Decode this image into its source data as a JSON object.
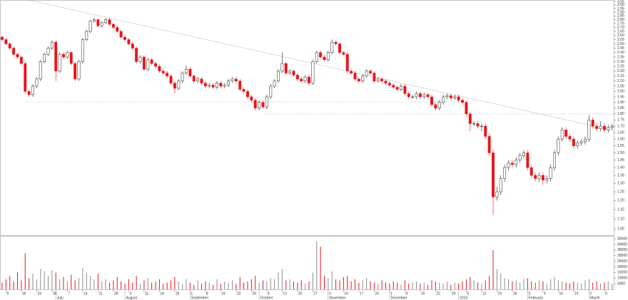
{
  "chart_data": [
    {
      "type": "candlestick",
      "log": true,
      "up_color": "#ffffff",
      "down_color": "#e8141c",
      "outline_color": "#222222",
      "ylim": [
        1.02,
        3.07
      ],
      "yticks": [
        1.05,
        {
          "value": 1.1,
          "label": "1.10"
        },
        1.15,
        {
          "value": 1.2,
          "label": "1.20"
        },
        1.25,
        {
          "value": 1.3,
          "label": "1.30"
        },
        1.35,
        {
          "value": 1.4,
          "label": "1.40"
        },
        1.45,
        {
          "value": 1.5,
          "label": "1.50"
        },
        1.55,
        {
          "value": 1.6,
          "label": "1.60"
        },
        1.65,
        {
          "value": 1.7,
          "label": "1.70"
        },
        1.75,
        {
          "value": 1.8,
          "label": "1.80"
        },
        1.85,
        {
          "value": 1.9,
          "label": "1.90"
        },
        1.95,
        {
          "value": 2,
          "label": "2.00"
        },
        2.05,
        {
          "value": 2.1,
          "label": "2.10"
        },
        2.15,
        {
          "value": 2.2,
          "label": "2.20"
        },
        2.25,
        {
          "value": 2.3,
          "label": "2.30"
        },
        2.35,
        {
          "value": 2.4,
          "label": "2.40"
        },
        2.45,
        {
          "value": 2.5,
          "label": "2.50"
        },
        2.55,
        {
          "value": 2.6,
          "label": "2.60"
        },
        2.65,
        {
          "value": 2.7,
          "label": "2.70"
        },
        2.75,
        {
          "value": 2.8,
          "label": "2.80"
        },
        2.85,
        {
          "value": 2.9,
          "label": "2.90"
        },
        2.95,
        {
          "value": 3,
          "label": "3.00"
        },
        3.05
      ],
      "xticks": [
        {
          "value": 1,
          "label": "9"
        },
        {
          "value": 5,
          "label": "16"
        },
        {
          "value": 9,
          "label": "23"
        },
        {
          "value": 13,
          "label": "30"
        },
        {
          "value": 17,
          "label": "7"
        },
        {
          "value": 21,
          "label": "14"
        },
        {
          "value": 25,
          "label": "21"
        },
        {
          "value": 29,
          "label": "28"
        },
        {
          "value": 33,
          "label": "4"
        },
        {
          "value": 37,
          "label": "11"
        },
        {
          "value": 41,
          "label": "18"
        },
        {
          "value": 45,
          "label": "25"
        },
        {
          "value": 49,
          "label": "1"
        },
        {
          "value": 53,
          "label": "8"
        },
        {
          "value": 57,
          "label": "15"
        },
        {
          "value": 61,
          "label": "22"
        },
        {
          "value": 65,
          "label": "29"
        },
        {
          "value": 69,
          "label": "6"
        },
        {
          "value": 73,
          "label": "13"
        },
        {
          "value": 77,
          "label": "20"
        },
        {
          "value": 81,
          "label": "27"
        },
        {
          "value": 85,
          "label": "3"
        },
        {
          "value": 89,
          "label": "10"
        },
        {
          "value": 93,
          "label": "17"
        },
        {
          "value": 97,
          "label": "24"
        },
        {
          "value": 101,
          "label": "1"
        },
        {
          "value": 105,
          "label": "8"
        },
        {
          "value": 109,
          "label": "15"
        },
        {
          "value": 113,
          "label": "22"
        },
        {
          "value": 117,
          "label": "29"
        },
        {
          "value": 121,
          "label": "5"
        },
        {
          "value": 125,
          "label": "12"
        },
        {
          "value": 129,
          "label": "19"
        },
        {
          "value": 133,
          "label": "26"
        },
        {
          "value": 137,
          "label": "2"
        },
        {
          "value": 141,
          "label": "9"
        },
        {
          "value": 145,
          "label": "16"
        },
        {
          "value": 149,
          "label": "23"
        },
        {
          "value": 153,
          "label": "2"
        },
        {
          "value": 157,
          "label": "9"
        }
      ],
      "month_ticks": [
        {
          "value": 14,
          "label": "July"
        },
        {
          "value": 32,
          "label": "August"
        },
        {
          "value": 49,
          "label": "September"
        },
        {
          "value": 67,
          "label": "October"
        },
        {
          "value": 85,
          "label": "November"
        },
        {
          "value": 101,
          "label": "December"
        },
        {
          "value": 119,
          "label": "2015"
        },
        {
          "value": 137,
          "label": "February"
        },
        {
          "value": 153,
          "label": "March"
        }
      ],
      "open": [
        2.58,
        2.55,
        2.5,
        2.45,
        2.38,
        2.35,
        2.28,
        2.0,
        1.97,
        2.05,
        2.12,
        2.3,
        2.38,
        2.45,
        2.52,
        2.2,
        2.38,
        2.35,
        2.4,
        2.28,
        2.12,
        2.3,
        2.55,
        2.65,
        2.78,
        2.8,
        2.72,
        2.76,
        2.8,
        2.74,
        2.7,
        2.65,
        2.58,
        2.55,
        2.5,
        2.45,
        2.3,
        2.35,
        2.22,
        2.32,
        2.28,
        2.25,
        2.2,
        2.18,
        2.15,
        2.08,
        2.03,
        2.1,
        2.18,
        2.22,
        2.15,
        2.1,
        2.12,
        2.08,
        2.05,
        2.06,
        2.04,
        2.08,
        2.05,
        2.06,
        2.1,
        2.12,
        2.1,
        2.02,
        2.0,
        1.95,
        1.92,
        1.85,
        1.9,
        1.86,
        1.95,
        2.05,
        2.1,
        2.2,
        2.28,
        2.18,
        2.2,
        2.16,
        2.12,
        2.1,
        2.14,
        2.08,
        2.3,
        2.4,
        2.35,
        2.32,
        2.4,
        2.52,
        2.5,
        2.4,
        2.38,
        2.2,
        2.18,
        2.12,
        2.1,
        2.15,
        2.2,
        2.18,
        2.1,
        2.12,
        2.1,
        2.08,
        2.06,
        2.04,
        2.02,
        2.05,
        1.98,
        1.95,
        1.95,
        1.98,
        1.95,
        1.97,
        1.95,
        1.88,
        1.85,
        1.9,
        1.95,
        1.96,
        1.94,
        1.95,
        1.92,
        1.9,
        1.8,
        1.72,
        1.72,
        1.7,
        1.7,
        1.62,
        1.5,
        1.22,
        1.25,
        1.33,
        1.4,
        1.43,
        1.42,
        1.45,
        1.48,
        1.5,
        1.4,
        1.35,
        1.33,
        1.35,
        1.32,
        1.33,
        1.4,
        1.5,
        1.6,
        1.67,
        1.62,
        1.6,
        1.55,
        1.57,
        1.58,
        1.6,
        1.75,
        1.7,
        1.68,
        1.7,
        1.67,
        1.69
      ],
      "high": [
        2.6,
        2.57,
        2.52,
        2.47,
        2.4,
        2.37,
        2.3,
        2.02,
        2.07,
        2.14,
        2.32,
        2.4,
        2.47,
        2.54,
        2.54,
        2.4,
        2.4,
        2.42,
        2.42,
        2.3,
        2.32,
        2.57,
        2.67,
        2.8,
        2.83,
        2.82,
        2.78,
        2.82,
        2.82,
        2.76,
        2.72,
        2.67,
        2.6,
        2.57,
        2.52,
        2.47,
        2.37,
        2.37,
        2.34,
        2.34,
        2.3,
        2.27,
        2.22,
        2.2,
        2.17,
        2.1,
        2.12,
        2.2,
        2.26,
        2.24,
        2.17,
        2.14,
        2.14,
        2.1,
        2.08,
        2.08,
        2.1,
        2.1,
        2.08,
        2.12,
        2.14,
        2.14,
        2.12,
        2.04,
        2.02,
        1.97,
        1.94,
        1.92,
        1.92,
        1.97,
        2.07,
        2.12,
        2.22,
        2.4,
        2.3,
        2.22,
        2.22,
        2.18,
        2.14,
        2.16,
        2.16,
        2.32,
        2.42,
        2.42,
        2.37,
        2.42,
        2.55,
        2.54,
        2.52,
        2.42,
        2.4,
        2.22,
        2.2,
        2.14,
        2.17,
        2.22,
        2.22,
        2.2,
        2.14,
        2.14,
        2.12,
        2.1,
        2.08,
        2.06,
        2.07,
        2.07,
        2.0,
        1.97,
        2.0,
        2.0,
        1.99,
        1.99,
        1.97,
        1.9,
        1.92,
        1.97,
        1.98,
        1.98,
        1.97,
        1.97,
        1.94,
        1.92,
        1.82,
        1.74,
        1.74,
        1.72,
        1.72,
        1.64,
        1.52,
        1.28,
        1.35,
        1.42,
        1.45,
        1.45,
        1.47,
        1.5,
        1.52,
        1.52,
        1.42,
        1.37,
        1.37,
        1.37,
        1.35,
        1.42,
        1.52,
        1.62,
        1.69,
        1.69,
        1.64,
        1.62,
        1.59,
        1.6,
        1.62,
        1.79,
        1.77,
        1.72,
        1.74,
        1.72,
        1.71,
        1.72
      ],
      "low": [
        2.53,
        2.48,
        2.43,
        2.36,
        2.33,
        2.26,
        1.98,
        1.95,
        1.95,
        2.03,
        2.1,
        2.28,
        2.36,
        2.43,
        2.1,
        2.18,
        2.33,
        2.33,
        2.26,
        2.1,
        2.1,
        2.28,
        2.53,
        2.63,
        2.76,
        2.7,
        2.7,
        2.74,
        2.72,
        2.68,
        2.63,
        2.56,
        2.53,
        2.48,
        2.43,
        2.28,
        2.28,
        2.2,
        2.2,
        2.26,
        2.23,
        2.18,
        2.16,
        2.13,
        2.06,
        1.98,
        2.01,
        2.08,
        2.16,
        2.13,
        2.08,
        2.08,
        2.06,
        2.03,
        2.03,
        2.02,
        2.02,
        2.03,
        2.03,
        2.04,
        2.08,
        2.08,
        2.0,
        1.98,
        1.93,
        1.9,
        1.83,
        1.83,
        1.84,
        1.84,
        1.93,
        2.03,
        2.08,
        2.18,
        2.16,
        2.16,
        2.14,
        2.1,
        2.08,
        2.08,
        2.06,
        2.06,
        2.28,
        2.33,
        2.3,
        2.3,
        2.38,
        2.48,
        2.38,
        2.36,
        2.18,
        2.16,
        2.1,
        2.08,
        2.08,
        2.13,
        2.16,
        2.08,
        2.08,
        2.08,
        2.06,
        2.04,
        2.02,
        2.0,
        2.0,
        1.96,
        1.93,
        1.93,
        1.93,
        1.93,
        1.93,
        1.93,
        1.86,
        1.83,
        1.83,
        1.88,
        1.93,
        1.92,
        1.92,
        1.9,
        1.88,
        1.78,
        1.66,
        1.7,
        1.68,
        1.66,
        1.6,
        1.48,
        1.12,
        1.2,
        1.23,
        1.31,
        1.38,
        1.4,
        1.4,
        1.43,
        1.46,
        1.38,
        1.33,
        1.31,
        1.31,
        1.29,
        1.3,
        1.31,
        1.38,
        1.48,
        1.58,
        1.6,
        1.58,
        1.53,
        1.53,
        1.55,
        1.56,
        1.58,
        1.68,
        1.66,
        1.66,
        1.65,
        1.65,
        1.67
      ],
      "close": [
        2.55,
        2.5,
        2.45,
        2.38,
        2.35,
        2.28,
        2.0,
        1.97,
        2.05,
        2.12,
        2.3,
        2.38,
        2.45,
        2.52,
        2.2,
        2.38,
        2.35,
        2.4,
        2.28,
        2.12,
        2.3,
        2.55,
        2.65,
        2.78,
        2.8,
        2.72,
        2.76,
        2.8,
        2.74,
        2.7,
        2.65,
        2.58,
        2.55,
        2.5,
        2.45,
        2.3,
        2.35,
        2.22,
        2.32,
        2.28,
        2.25,
        2.2,
        2.18,
        2.15,
        2.08,
        2.03,
        2.1,
        2.18,
        2.22,
        2.15,
        2.1,
        2.12,
        2.08,
        2.05,
        2.06,
        2.04,
        2.08,
        2.05,
        2.06,
        2.1,
        2.12,
        2.1,
        2.02,
        2.0,
        1.95,
        1.92,
        1.85,
        1.9,
        1.86,
        1.95,
        2.05,
        2.1,
        2.2,
        2.28,
        2.18,
        2.2,
        2.16,
        2.12,
        2.1,
        2.14,
        2.08,
        2.3,
        2.4,
        2.35,
        2.32,
        2.4,
        2.52,
        2.5,
        2.4,
        2.38,
        2.2,
        2.18,
        2.12,
        2.1,
        2.15,
        2.2,
        2.18,
        2.1,
        2.12,
        2.1,
        2.08,
        2.06,
        2.04,
        2.02,
        2.05,
        1.98,
        1.95,
        1.95,
        1.98,
        1.95,
        1.97,
        1.95,
        1.88,
        1.85,
        1.9,
        1.95,
        1.96,
        1.94,
        1.95,
        1.92,
        1.9,
        1.8,
        1.72,
        1.72,
        1.7,
        1.7,
        1.62,
        1.5,
        1.22,
        1.25,
        1.33,
        1.4,
        1.43,
        1.42,
        1.45,
        1.48,
        1.5,
        1.4,
        1.35,
        1.33,
        1.35,
        1.32,
        1.33,
        1.4,
        1.5,
        1.6,
        1.67,
        1.62,
        1.6,
        1.55,
        1.57,
        1.58,
        1.6,
        1.75,
        1.7,
        1.68,
        1.7,
        1.67,
        1.69,
        1.7
      ]
    },
    {
      "type": "volume",
      "up_color": "#8c8c8c",
      "down_color": "#e8141c",
      "ylim": [
        0,
        47000
      ],
      "yticks": [
        5000,
        10000,
        15000,
        20000,
        25000,
        30000,
        35000,
        40000,
        45000
      ],
      "values": [
        6000,
        9000,
        12000,
        7000,
        15000,
        8000,
        32000,
        10000,
        14000,
        9000,
        18000,
        16000,
        12000,
        17000,
        15000,
        9000,
        11000,
        7000,
        13000,
        8000,
        10000,
        19000,
        15000,
        12000,
        9000,
        14000,
        7000,
        9000,
        6000,
        8000,
        11000,
        7000,
        5000,
        9000,
        6000,
        12000,
        5000,
        8000,
        10000,
        6000,
        7000,
        9000,
        5000,
        6000,
        8000,
        11000,
        7000,
        5000,
        9000,
        6000,
        4000,
        8000,
        5000,
        7000,
        6000,
        4000,
        9000,
        5000,
        7000,
        6000,
        8000,
        5000,
        11000,
        6000,
        7000,
        9000,
        12000,
        6000,
        8000,
        7000,
        10000,
        9000,
        15000,
        18000,
        8000,
        9000,
        7000,
        6000,
        8000,
        5000,
        7000,
        15000,
        43000,
        38000,
        12000,
        10000,
        16000,
        9000,
        8000,
        11000,
        12000,
        7000,
        9000,
        6000,
        8000,
        10000,
        7000,
        6000,
        5000,
        8000,
        6000,
        5000,
        7000,
        6000,
        4000,
        8000,
        5000,
        6000,
        7000,
        5000,
        6000,
        4000,
        8000,
        7000,
        6000,
        5000,
        7000,
        4000,
        6000,
        5000,
        7000,
        9000,
        11000,
        8000,
        6000,
        5000,
        8000,
        12000,
        35000,
        18000,
        14000,
        10000,
        9000,
        7000,
        8000,
        6000,
        9000,
        10000,
        7000,
        6000,
        8000,
        7000,
        5000,
        9000,
        11000,
        8000,
        7000,
        6000,
        5000,
        7000,
        6000,
        5000,
        8000,
        9000,
        6000,
        7000,
        5000,
        6000,
        7000,
        5000
      ]
    }
  ]
}
